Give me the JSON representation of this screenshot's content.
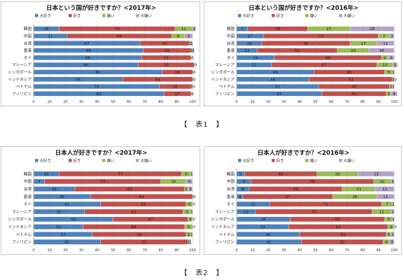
{
  "figure_captions": [
    "【　表1　】",
    "【　表2　】"
  ],
  "chart_data": [
    {
      "type": "bar",
      "orientation": "horizontal",
      "stacked": true,
      "title": "日本という国が好きですか？<2017年>",
      "categories": [
        "韓国",
        "中国",
        "台湾",
        "香港",
        "タイ",
        "マレーシア",
        "シンガポール",
        "インドネシア",
        "ベトナム",
        "フィリピン"
      ],
      "series": [
        {
          "name": "大好き",
          "color": "#4f81bd",
          "values": [
            16,
            21,
            67,
            69,
            68,
            66,
            81,
            56,
            79,
            82
          ]
        },
        {
          "name": "好き",
          "color": "#c0504d",
          "values": [
            73,
            66,
            31,
            30,
            31,
            35,
            19,
            44,
            20,
            17
          ]
        },
        {
          "name": "嫌い",
          "color": "#9bbb59",
          "values": [
            11,
            8,
            1,
            1,
            0,
            0,
            0,
            0,
            1,
            0
          ]
        },
        {
          "name": "大嫌い",
          "color": "#b3a2c7",
          "values": [
            2,
            5,
            1,
            1,
            0,
            0,
            0,
            0,
            0,
            0
          ]
        }
      ],
      "xlim": [
        0,
        100
      ],
      "xticks": [
        0,
        10,
        20,
        30,
        40,
        50,
        60,
        70,
        80,
        90,
        100
      ],
      "legend_position": "top",
      "grid": true
    },
    {
      "type": "bar",
      "orientation": "horizontal",
      "stacked": true,
      "title": "日本という国が好きですか？<2016年>",
      "categories": [
        "韓国",
        "中国",
        "台湾",
        "香港",
        "タイ",
        "マレーシア",
        "シンガポール",
        "インドネシア",
        "ベトナム",
        "フィリピン"
      ],
      "series": [
        {
          "name": "大好き",
          "color": "#4f81bd",
          "values": [
            7,
            17,
            16,
            13,
            24,
            22,
            49,
            46,
            52,
            54
          ]
        },
        {
          "name": "好き",
          "color": "#c0504d",
          "values": [
            38,
            73,
            56,
            51,
            68,
            67,
            45,
            53,
            45,
            41
          ]
        },
        {
          "name": "嫌い",
          "color": "#9bbb59",
          "values": [
            27,
            7,
            17,
            20,
            4,
            10,
            5,
            1,
            2,
            3
          ]
        },
        {
          "name": "大嫌い",
          "color": "#b3a2c7",
          "values": [
            28,
            3,
            11,
            16,
            4,
            3,
            1,
            0,
            1,
            4
          ]
        }
      ],
      "xlim": [
        0,
        100
      ],
      "xticks": [
        0,
        10,
        20,
        30,
        40,
        50,
        60,
        70,
        80,
        90,
        100
      ],
      "legend_position": "top",
      "grid": true
    },
    {
      "type": "bar",
      "orientation": "horizontal",
      "stacked": true,
      "title": "日本人が好きですか？<2017年>",
      "categories": [
        "韓国",
        "中国",
        "台湾",
        "香港",
        "タイ",
        "マレーシア",
        "シンガポール",
        "インドネシア",
        "ベトナム",
        "フィリピン"
      ],
      "series": [
        {
          "name": "大好き",
          "color": "#4f81bd",
          "values": [
            16,
            7,
            26,
            36,
            42,
            32,
            50,
            31,
            37,
            42
          ]
        },
        {
          "name": "好き",
          "color": "#c0504d",
          "values": [
            77,
            73,
            69,
            64,
            54,
            62,
            47,
            64,
            59,
            55
          ]
        },
        {
          "name": "嫌い",
          "color": "#9bbb59",
          "values": [
            6,
            16,
            2,
            0,
            4,
            5,
            3,
            5,
            3,
            1
          ]
        },
        {
          "name": "大嫌い",
          "color": "#b3a2c7",
          "values": [
            1,
            4,
            3,
            0,
            0,
            1,
            0,
            0,
            1,
            1
          ]
        }
      ],
      "xlim": [
        0,
        100
      ],
      "xticks": [
        0,
        10,
        20,
        30,
        40,
        50,
        60,
        70,
        80,
        90,
        100
      ],
      "legend_position": "top",
      "grid": true
    },
    {
      "type": "bar",
      "orientation": "horizontal",
      "stacked": true,
      "title": "日本人が好きですか？<2016年>",
      "categories": [
        "韓国",
        "中国",
        "台湾",
        "香港",
        "タイ",
        "マレーシア",
        "シンガポール",
        "インドネシア",
        "ベトナム",
        "フィリピン"
      ],
      "series": [
        {
          "name": "大好き",
          "color": "#4f81bd",
          "values": [
            5,
            9,
            8,
            4,
            21,
            12,
            34,
            33,
            40,
            41
          ]
        },
        {
          "name": "好き",
          "color": "#c0504d",
          "values": [
            46,
            78,
            59,
            57,
            71,
            74,
            60,
            63,
            55,
            52
          ]
        },
        {
          "name": "嫌い",
          "color": "#9bbb59",
          "values": [
            26,
            11,
            21,
            28,
            7,
            12,
            5,
            4,
            3,
            4
          ]
        },
        {
          "name": "大嫌い",
          "color": "#b3a2c7",
          "values": [
            23,
            2,
            12,
            11,
            1,
            2,
            1,
            0,
            2,
            3
          ]
        }
      ],
      "xlim": [
        0,
        100
      ],
      "xticks": [
        0,
        10,
        20,
        30,
        40,
        50,
        60,
        70,
        80,
        90,
        100
      ],
      "legend_position": "top",
      "grid": true
    }
  ]
}
